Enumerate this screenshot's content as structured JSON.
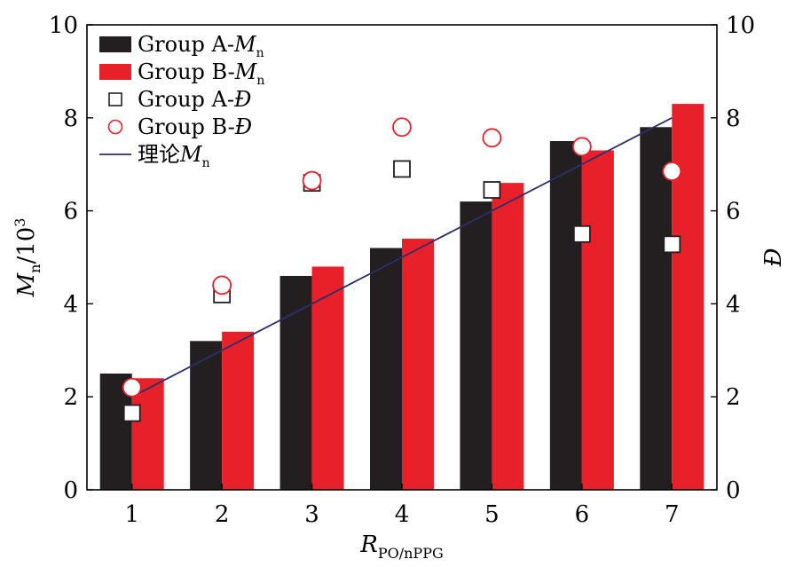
{
  "chart_data": {
    "type": "bar",
    "categories": [
      "1",
      "2",
      "3",
      "4",
      "5",
      "6",
      "7"
    ],
    "series": [
      {
        "name": "Group A-M_n",
        "kind": "bar",
        "axis": "left",
        "color": "#231f20",
        "legend": {
          "prefix": "Group A-",
          "main": "M",
          "sub": "n"
        },
        "values": [
          2.5,
          3.2,
          4.6,
          5.2,
          6.2,
          7.5,
          7.8
        ]
      },
      {
        "name": "Group B-M_n",
        "kind": "bar",
        "axis": "left",
        "color": "#e8202a",
        "legend": {
          "prefix": "Group B-",
          "main": "M",
          "sub": "n"
        },
        "values": [
          2.4,
          3.4,
          4.8,
          5.4,
          6.6,
          7.3,
          8.3
        ]
      },
      {
        "name": "Group A-Đ",
        "kind": "scatter",
        "axis": "right",
        "marker": "square",
        "color": "#231f20",
        "legend": {
          "prefix": "Group A-",
          "main": "Đ",
          "sub": ""
        },
        "values": [
          1.65,
          4.2,
          6.6,
          6.9,
          6.45,
          5.5,
          5.28
        ]
      },
      {
        "name": "Group B-Đ",
        "kind": "scatter",
        "axis": "right",
        "marker": "circle",
        "color": "#e8202a",
        "legend": {
          "prefix": "Group B-",
          "main": "Đ",
          "sub": ""
        },
        "values": [
          2.2,
          4.4,
          6.65,
          7.8,
          7.57,
          7.38,
          6.85
        ]
      },
      {
        "name": "理论M_n",
        "kind": "line",
        "axis": "left",
        "color": "#2b2f6b",
        "legend": {
          "prefix": "理论",
          "main": "M",
          "sub": "n"
        },
        "values": [
          2.0,
          3.0,
          4.0,
          5.0,
          6.0,
          7.0,
          8.0
        ]
      }
    ],
    "xlabel": {
      "main": "R",
      "sub": "PO/nPPG"
    },
    "ylabel": {
      "main": "M",
      "sub": "n",
      "suffix": "/10",
      "sup": "3"
    },
    "y2label": "Đ",
    "ylim": [
      0,
      10
    ],
    "y2lim": [
      0,
      10
    ],
    "yticks": [
      "0",
      "2",
      "4",
      "6",
      "8",
      "10"
    ],
    "y2ticks": [
      "0",
      "2",
      "4",
      "6",
      "8",
      "10"
    ],
    "grid": false,
    "legend_position": "top-left"
  }
}
